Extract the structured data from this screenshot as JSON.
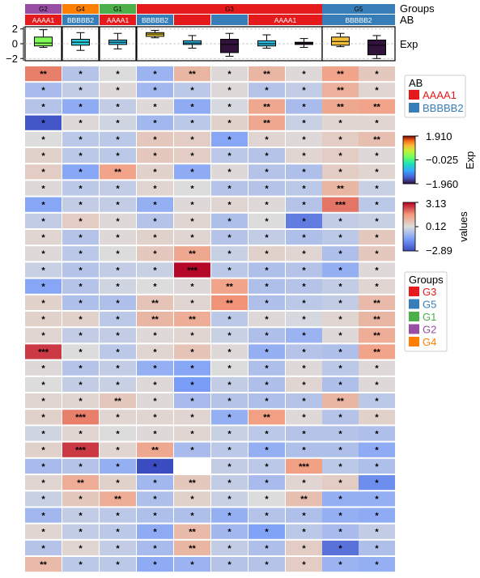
{
  "chart_data": {
    "type": "heatmap",
    "title": "",
    "columns": [
      {
        "group": "G2",
        "ab": "AAAA1"
      },
      {
        "group": "G4",
        "ab": "BBBBB2"
      },
      {
        "group": "G1",
        "ab": "AAAA1"
      },
      {
        "group": "G3",
        "ab": "BBBBB2"
      },
      {
        "group": "G3",
        "ab": "AAAA1"
      },
      {
        "group": "G3",
        "ab": "BBBBB2"
      },
      {
        "group": "G3",
        "ab": "AAAA1"
      },
      {
        "group": "G3",
        "ab": "AAAA1"
      },
      {
        "group": "G5",
        "ab": "BBBBB2"
      },
      {
        "group": "G5",
        "ab": "BBBBB2"
      }
    ],
    "top_annotation": {
      "groups_track": {
        "label": "Groups",
        "segments": [
          {
            "label": "G2",
            "start": 0,
            "end": 1
          },
          {
            "label": "G4",
            "start": 1,
            "end": 2
          },
          {
            "label": "G1",
            "start": 2,
            "end": 3
          },
          {
            "label": "G3",
            "start": 3,
            "end": 8
          },
          {
            "label": "G5",
            "start": 8,
            "end": 10
          }
        ]
      },
      "ab_track": {
        "label": "AB",
        "segments": [
          {
            "label": "AAAA1",
            "start": 0,
            "end": 1
          },
          {
            "label": "BBBBB2",
            "start": 1,
            "end": 2
          },
          {
            "label": "AAAA1",
            "start": 2,
            "end": 3
          },
          {
            "label": "BBBBB2",
            "start": 3,
            "end": 4
          },
          {
            "label": "",
            "start": 4,
            "end": 5
          },
          {
            "label": "",
            "start": 5,
            "end": 6
          },
          {
            "label": "AAAA1",
            "start": 6,
            "end": 8
          },
          {
            "label": "BBBBB2",
            "start": 8,
            "end": 10
          }
        ]
      },
      "boxplot_track": {
        "label": "Exp",
        "yticks": [
          2,
          0,
          -2
        ],
        "ylim": [
          -2.3,
          2.3
        ],
        "boxes": [
          {
            "min": -0.5,
            "q1": -0.3,
            "median": 0.1,
            "q3": 0.9,
            "max": 1.9,
            "color_value": 0.3
          },
          {
            "min": -0.9,
            "q1": -0.2,
            "median": 0.2,
            "q3": 0.6,
            "max": 1.5,
            "color_value": -0.6
          },
          {
            "min": -0.7,
            "q1": -0.1,
            "median": 0.2,
            "q3": 0.5,
            "max": 1.4,
            "color_value": -0.7
          },
          {
            "min": 0.8,
            "q1": 1.0,
            "median": 1.3,
            "q3": 1.5,
            "max": 1.8,
            "color_value": 1.0
          },
          {
            "min": -0.6,
            "q1": -0.1,
            "median": 0.1,
            "q3": 0.4,
            "max": 1.1,
            "color_value": -0.75
          },
          {
            "min": -1.7,
            "q1": -1.2,
            "median": -0.1,
            "q3": 0.6,
            "max": 1.4,
            "color_value": -1.96
          },
          {
            "min": -0.6,
            "q1": -0.3,
            "median": 0.0,
            "q3": 0.4,
            "max": 1.2,
            "color_value": -0.7
          },
          {
            "min": -0.5,
            "q1": -0.1,
            "median": 0.1,
            "q3": 0.2,
            "max": 0.7,
            "color_value": -1.96
          },
          {
            "min": -0.4,
            "q1": -0.2,
            "median": 0.3,
            "q3": 0.9,
            "max": 1.4,
            "color_value": 1.1
          },
          {
            "min": -2.0,
            "q1": -1.5,
            "median": -0.2,
            "q3": 0.5,
            "max": 1.1,
            "color_value": -1.96
          }
        ]
      }
    },
    "values": [
      [
        1.9,
        -0.5,
        0.1,
        -0.9,
        1.0,
        0.2,
        1.0,
        0.2,
        1.4,
        0.6
      ],
      [
        -0.7,
        -0.3,
        0.2,
        -0.8,
        -0.4,
        0.2,
        -0.5,
        -0.3,
        1.1,
        0.3
      ],
      [
        -0.5,
        -1.1,
        -0.3,
        0.2,
        -1.1,
        0.0,
        1.3,
        -0.7,
        1.3,
        1.4
      ],
      [
        -2.7,
        0.2,
        -0.1,
        -0.8,
        -0.4,
        0.4,
        1.3,
        -0.2,
        0.3,
        0.3
      ],
      [
        0.1,
        -0.4,
        -0.4,
        0.6,
        0.5,
        -1.2,
        0.3,
        0.2,
        0.5,
        0.8
      ],
      [
        0.4,
        -0.4,
        -0.4,
        0.6,
        0.5,
        -0.4,
        -0.5,
        0.3,
        0.5,
        0.2
      ],
      [
        0.5,
        -1.2,
        1.4,
        0.4,
        -1.1,
        0.2,
        -0.5,
        -0.6,
        0.5,
        0.3
      ],
      [
        0.2,
        -0.4,
        -0.3,
        0.3,
        0.1,
        -0.5,
        -0.5,
        -0.4,
        1.0,
        -0.2
      ],
      [
        -1.2,
        -0.3,
        -0.3,
        -1.0,
        0.2,
        0.3,
        0.2,
        -0.5,
        2.0,
        -0.4
      ],
      [
        -0.3,
        0.5,
        0.2,
        -0.5,
        0.3,
        -0.6,
        0.1,
        -2.0,
        -0.3,
        -0.2
      ],
      [
        0.3,
        -0.5,
        0.2,
        0.4,
        0.3,
        -0.5,
        -0.3,
        -0.6,
        -0.4,
        0.6
      ],
      [
        0.2,
        -0.4,
        0.1,
        0.6,
        1.3,
        -0.2,
        0.4,
        0.3,
        -0.6,
        0.6
      ],
      [
        -0.2,
        -0.5,
        -0.3,
        -0.2,
        3.1,
        -0.4,
        -0.6,
        -0.5,
        -1.0,
        0.2
      ],
      [
        -1.2,
        -0.5,
        -0.1,
        0.1,
        0.2,
        1.4,
        -0.6,
        -0.5,
        -0.3,
        0.3
      ],
      [
        0.4,
        -0.6,
        -0.6,
        0.7,
        0.3,
        1.7,
        -0.6,
        -0.4,
        -0.3,
        0.9
      ],
      [
        0.4,
        0.4,
        -0.4,
        1.0,
        1.2,
        -0.4,
        0.2,
        0.0,
        0.3,
        1.0
      ],
      [
        0.3,
        -0.3,
        -0.3,
        0.2,
        0.3,
        -0.2,
        -0.6,
        -0.9,
        0.2,
        1.2
      ],
      [
        2.6,
        0.1,
        -0.4,
        0.3,
        0.7,
        0.2,
        -1.0,
        -0.5,
        -0.6,
        1.4
      ],
      [
        0.2,
        -0.5,
        -0.3,
        -1.0,
        -1.2,
        0.1,
        -0.6,
        0.2,
        -0.4,
        0.2
      ],
      [
        0.1,
        -0.3,
        -0.2,
        0.2,
        -1.4,
        -0.3,
        -0.6,
        0.3,
        -0.6,
        0.2
      ],
      [
        0.3,
        0.3,
        0.6,
        0.2,
        -0.7,
        -0.5,
        -0.6,
        -0.5,
        1.0,
        -0.4
      ],
      [
        0.4,
        1.9,
        0.3,
        0.3,
        0.3,
        -1.0,
        1.5,
        0.2,
        -0.5,
        0.4
      ],
      [
        -0.1,
        0.3,
        0.1,
        0.2,
        0.3,
        -0.2,
        -0.4,
        -0.5,
        -0.5,
        -0.6
      ],
      [
        0.4,
        2.6,
        0.3,
        1.3,
        -0.7,
        -0.4,
        -1.0,
        -0.6,
        -0.6,
        -1.1
      ],
      [
        -0.7,
        -0.5,
        -1.0,
        -2.9,
        null,
        -0.3,
        -0.4,
        1.5,
        -0.4,
        -0.6
      ],
      [
        0.3,
        1.2,
        0.4,
        -0.8,
        0.6,
        -0.3,
        -0.7,
        0.3,
        0.5,
        -1.7
      ],
      [
        -0.2,
        0.6,
        1.2,
        -0.6,
        0.4,
        -0.2,
        0.1,
        0.8,
        -1.0,
        -1.0
      ],
      [
        -0.8,
        -0.3,
        -0.4,
        -0.6,
        -0.6,
        -1.0,
        -0.5,
        -0.6,
        -1.0,
        -1.1
      ],
      [
        0.3,
        -0.3,
        -0.4,
        -1.1,
        0.9,
        -0.8,
        -1.3,
        -0.4,
        -0.7,
        -0.3
      ],
      [
        -0.5,
        0.3,
        -0.3,
        -0.7,
        1.0,
        -0.3,
        -0.6,
        0.5,
        -2.2,
        -0.6
      ],
      [
        0.9,
        -0.4,
        -0.4,
        -1.1,
        -0.9,
        -0.5,
        -0.5,
        0.5,
        -0.9,
        -1.0
      ]
    ],
    "cell_labels": [
      [
        "**",
        "*",
        "*",
        "*",
        "**",
        "*",
        "**",
        "*",
        "**",
        "*"
      ],
      [
        "*",
        "*",
        "*",
        "*",
        "*",
        "*",
        "*",
        "*",
        "**",
        "*"
      ],
      [
        "*",
        "*",
        "*",
        "*",
        "*",
        "*",
        "**",
        "*",
        "**",
        "**"
      ],
      [
        "*",
        "*",
        "*",
        "*",
        "*",
        "*",
        "**",
        "*",
        "*",
        "*"
      ],
      [
        "*",
        "*",
        "*",
        "*",
        "*",
        "*",
        "*",
        "*",
        "*",
        "**"
      ],
      [
        "*",
        "*",
        "*",
        "*",
        "*",
        "*",
        "*",
        "*",
        "*",
        "*"
      ],
      [
        "*",
        "*",
        "**",
        "*",
        "*",
        "*",
        "*",
        "*",
        "*",
        "*"
      ],
      [
        "*",
        "*",
        "*",
        "*",
        "*",
        "*",
        "*",
        "*",
        "**",
        "*"
      ],
      [
        "*",
        "*",
        "*",
        "*",
        "*",
        "*",
        "*",
        "*",
        "***",
        "*"
      ],
      [
        "*",
        "*",
        "*",
        "*",
        "*",
        "*",
        "*",
        "*",
        "*",
        "*"
      ],
      [
        "*",
        "*",
        "*",
        "*",
        "*",
        "*",
        "*",
        "*",
        "*",
        "*"
      ],
      [
        "*",
        "*",
        "*",
        "*",
        "**",
        "*",
        "*",
        "*",
        "*",
        "*"
      ],
      [
        "*",
        "*",
        "*",
        "*",
        "***",
        "*",
        "*",
        "*",
        "*",
        "*"
      ],
      [
        "*",
        "*",
        "*",
        "*",
        "*",
        "**",
        "*",
        "*",
        "*",
        "*"
      ],
      [
        "*",
        "*",
        "*",
        "**",
        "*",
        "**",
        "*",
        "*",
        "*",
        "**"
      ],
      [
        "*",
        "*",
        "*",
        "**",
        "**",
        "*",
        "*",
        "*",
        "*",
        "**"
      ],
      [
        "*",
        "*",
        "*",
        "*",
        "*",
        "*",
        "*",
        "*",
        "*",
        "**"
      ],
      [
        "***",
        "*",
        "*",
        "*",
        "*",
        "*",
        "*",
        "*",
        "*",
        "**"
      ],
      [
        "*",
        "*",
        "*",
        "*",
        "*",
        "*",
        "*",
        "*",
        "*",
        "*"
      ],
      [
        "*",
        "*",
        "*",
        "*",
        "*",
        "*",
        "*",
        "*",
        "*",
        "*"
      ],
      [
        "*",
        "*",
        "**",
        "*",
        "*",
        "*",
        "*",
        "*",
        "**",
        "*"
      ],
      [
        "*",
        "***",
        "*",
        "*",
        "*",
        "*",
        "**",
        "*",
        "*",
        "*"
      ],
      [
        "*",
        "*",
        "*",
        "*",
        "*",
        "*",
        "*",
        "*",
        "*",
        "*"
      ],
      [
        "*",
        "***",
        "*",
        "**",
        "*",
        "*",
        "*",
        "*",
        "*",
        "*"
      ],
      [
        "*",
        "*",
        "*",
        "*",
        "",
        "*",
        "*",
        "***",
        "*",
        "*"
      ],
      [
        "*",
        "**",
        "*",
        "*",
        "**",
        "*",
        "*",
        "*",
        "*",
        "*"
      ],
      [
        "*",
        "*",
        "**",
        "*",
        "*",
        "*",
        "*",
        "**",
        "*",
        "*"
      ],
      [
        "*",
        "*",
        "*",
        "*",
        "*",
        "*",
        "*",
        "*",
        "*",
        "*"
      ],
      [
        "*",
        "*",
        "*",
        "*",
        "**",
        "*",
        "*",
        "*",
        "*",
        "*"
      ],
      [
        "*",
        "*",
        "*",
        "*",
        "**",
        "*",
        "*",
        "*",
        "*",
        "*"
      ],
      [
        "**",
        "*",
        "*",
        "*",
        "*",
        "*",
        "*",
        "*",
        "*",
        "*"
      ]
    ],
    "column_splits_after": [
      0,
      1,
      2,
      7
    ],
    "colorscale_values": {
      "label": "values",
      "min": -2.89,
      "mid": 0.12,
      "max": 3.13,
      "ticks": [
        "3.13",
        "0.12",
        "−2.89"
      ]
    },
    "colorscale_exp": {
      "label": "Exp",
      "min": -1.96,
      "mid": -0.025,
      "max": 1.91,
      "ticks": [
        "1.910",
        "−0.025",
        "−1.960"
      ]
    },
    "legend_ab": {
      "title": "AB",
      "items": [
        {
          "label": "AAAA1",
          "color": "#e41a1c"
        },
        {
          "label": "BBBBB2",
          "color": "#377eb8"
        }
      ]
    },
    "legend_groups": {
      "title": "Groups",
      "items": [
        {
          "label": "G3",
          "color": "#e41a1c"
        },
        {
          "label": "G5",
          "color": "#377eb8"
        },
        {
          "label": "G1",
          "color": "#4daf4a"
        },
        {
          "label": "G2",
          "color": "#984ea3"
        },
        {
          "label": "G4",
          "color": "#ff7f00"
        }
      ]
    }
  }
}
